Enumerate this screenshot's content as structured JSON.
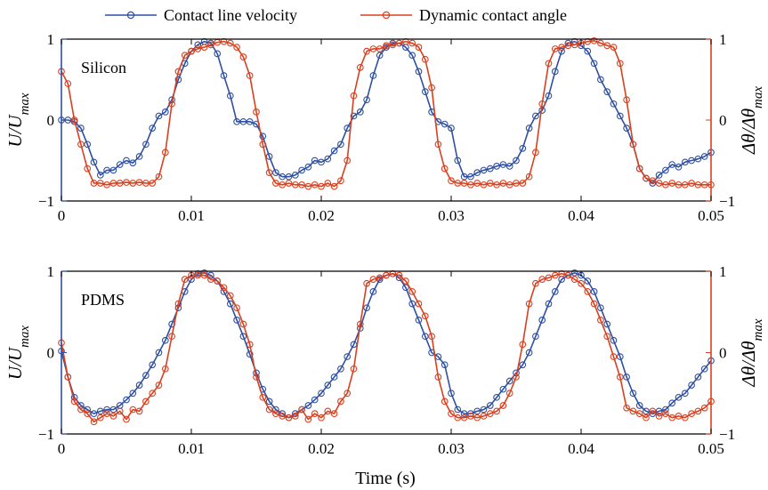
{
  "legend": {
    "velocity_label": "Contact line velocity",
    "angle_label": "Dynamic contact angle"
  },
  "colors": {
    "velocity": "#2f4fa0",
    "angle": "#d9401f"
  },
  "xlabel": "Time (s)",
  "left_ylabel": "U/U_max",
  "right_ylabel": "Δθ/Δθ_max",
  "chart_data": [
    {
      "type": "line",
      "panel": "Silicon",
      "xlabel": "",
      "xlim": [
        0,
        0.05
      ],
      "ylim": [
        -1,
        1
      ],
      "xticks": [
        0,
        0.01,
        0.02,
        0.03,
        0.04,
        0.05
      ],
      "xtick_labels": [
        "0",
        "0.01",
        "0.02",
        "0.03",
        "0.04",
        "0.05"
      ],
      "yticks": [
        -1,
        0,
        1
      ],
      "ytick_labels": [
        "−1",
        "0",
        "1"
      ],
      "series": [
        {
          "name": "Contact line velocity",
          "axis": "left",
          "x": [
            0,
            0.0005,
            0.001,
            0.0015,
            0.002,
            0.0025,
            0.003,
            0.0035,
            0.004,
            0.0045,
            0.005,
            0.0055,
            0.006,
            0.0065,
            0.007,
            0.0075,
            0.008,
            0.0085,
            0.009,
            0.0095,
            0.01,
            0.0105,
            0.011,
            0.0115,
            0.012,
            0.0125,
            0.013,
            0.0135,
            0.014,
            0.0145,
            0.015,
            0.0155,
            0.016,
            0.0165,
            0.017,
            0.0175,
            0.018,
            0.0185,
            0.019,
            0.0195,
            0.02,
            0.0205,
            0.021,
            0.0215,
            0.022,
            0.0225,
            0.023,
            0.0235,
            0.024,
            0.0245,
            0.025,
            0.0255,
            0.026,
            0.0265,
            0.027,
            0.0275,
            0.028,
            0.0285,
            0.029,
            0.0295,
            0.03,
            0.0305,
            0.031,
            0.0315,
            0.032,
            0.0325,
            0.033,
            0.0335,
            0.034,
            0.0345,
            0.035,
            0.0355,
            0.036,
            0.0365,
            0.037,
            0.0375,
            0.038,
            0.0385,
            0.039,
            0.0395,
            0.04,
            0.0405,
            0.041,
            0.0415,
            0.042,
            0.0425,
            0.043,
            0.0435,
            0.044,
            0.0445,
            0.045,
            0.0455,
            0.046,
            0.0465,
            0.047,
            0.0475,
            0.048,
            0.0485,
            0.049,
            0.0495,
            0.05
          ],
          "y": [
            0.0,
            0.0,
            -0.02,
            -0.1,
            -0.3,
            -0.52,
            -0.68,
            -0.62,
            -0.62,
            -0.55,
            -0.5,
            -0.53,
            -0.45,
            -0.3,
            -0.1,
            0.05,
            0.1,
            0.25,
            0.5,
            0.7,
            0.85,
            0.93,
            0.97,
            0.95,
            0.82,
            0.55,
            0.3,
            -0.02,
            -0.02,
            -0.02,
            -0.05,
            -0.2,
            -0.45,
            -0.65,
            -0.7,
            -0.7,
            -0.68,
            -0.62,
            -0.58,
            -0.5,
            -0.52,
            -0.48,
            -0.38,
            -0.3,
            -0.1,
            0.05,
            0.1,
            0.25,
            0.55,
            0.8,
            0.9,
            0.95,
            0.95,
            0.9,
            0.8,
            0.6,
            0.35,
            0.1,
            -0.02,
            -0.05,
            -0.1,
            -0.5,
            -0.7,
            -0.7,
            -0.65,
            -0.62,
            -0.6,
            -0.57,
            -0.55,
            -0.57,
            -0.5,
            -0.35,
            -0.1,
            0.05,
            0.12,
            0.3,
            0.6,
            0.85,
            0.95,
            0.97,
            0.92,
            0.85,
            0.7,
            0.5,
            0.35,
            0.2,
            0.05,
            -0.1,
            -0.3,
            -0.6,
            -0.72,
            -0.78,
            -0.68,
            -0.62,
            -0.55,
            -0.58,
            -0.52,
            -0.5,
            -0.48,
            -0.45,
            -0.4
          ]
        },
        {
          "name": "Dynamic contact angle",
          "axis": "right",
          "x": [
            0,
            0.0005,
            0.001,
            0.0015,
            0.002,
            0.0025,
            0.003,
            0.0035,
            0.004,
            0.0045,
            0.005,
            0.0055,
            0.006,
            0.0065,
            0.007,
            0.0075,
            0.008,
            0.0085,
            0.009,
            0.0095,
            0.01,
            0.0105,
            0.011,
            0.0115,
            0.012,
            0.0125,
            0.013,
            0.0135,
            0.014,
            0.0145,
            0.015,
            0.0155,
            0.016,
            0.0165,
            0.017,
            0.0175,
            0.018,
            0.0185,
            0.019,
            0.0195,
            0.02,
            0.0205,
            0.021,
            0.0215,
            0.022,
            0.0225,
            0.023,
            0.0235,
            0.024,
            0.0245,
            0.025,
            0.0255,
            0.026,
            0.0265,
            0.027,
            0.0275,
            0.028,
            0.0285,
            0.029,
            0.0295,
            0.03,
            0.0305,
            0.031,
            0.0315,
            0.032,
            0.0325,
            0.033,
            0.0335,
            0.034,
            0.0345,
            0.035,
            0.0355,
            0.036,
            0.0365,
            0.037,
            0.0375,
            0.038,
            0.0385,
            0.039,
            0.0395,
            0.04,
            0.0405,
            0.041,
            0.0415,
            0.042,
            0.0425,
            0.043,
            0.0435,
            0.044,
            0.0445,
            0.045,
            0.0455,
            0.046,
            0.0465,
            0.047,
            0.0475,
            0.048,
            0.0485,
            0.049,
            0.0495,
            0.05
          ],
          "y": [
            0.6,
            0.45,
            0.0,
            -0.3,
            -0.6,
            -0.78,
            -0.78,
            -0.8,
            -0.78,
            -0.78,
            -0.77,
            -0.78,
            -0.77,
            -0.78,
            -0.78,
            -0.7,
            -0.4,
            0.2,
            0.6,
            0.8,
            0.85,
            0.88,
            0.9,
            0.93,
            0.96,
            0.97,
            0.95,
            0.9,
            0.78,
            0.55,
            0.1,
            -0.3,
            -0.65,
            -0.78,
            -0.8,
            -0.78,
            -0.8,
            -0.8,
            -0.82,
            -0.8,
            -0.82,
            -0.78,
            -0.82,
            -0.75,
            -0.5,
            0.3,
            0.65,
            0.85,
            0.88,
            0.88,
            0.92,
            0.93,
            0.95,
            0.97,
            0.95,
            0.9,
            0.75,
            0.4,
            -0.3,
            -0.6,
            -0.75,
            -0.78,
            -0.78,
            -0.8,
            -0.78,
            -0.8,
            -0.78,
            -0.8,
            -0.78,
            -0.8,
            -0.78,
            -0.78,
            -0.7,
            -0.4,
            0.2,
            0.7,
            0.88,
            0.9,
            0.92,
            0.93,
            0.95,
            0.97,
            0.98,
            0.95,
            0.92,
            0.9,
            0.7,
            0.25,
            -0.3,
            -0.6,
            -0.72,
            -0.75,
            -0.78,
            -0.8,
            -0.78,
            -0.8,
            -0.8,
            -0.78,
            -0.8,
            -0.8,
            -0.8
          ]
        }
      ]
    },
    {
      "type": "line",
      "panel": "PDMS",
      "xlabel": "Time (s)",
      "xlim": [
        0,
        0.05
      ],
      "ylim": [
        -1,
        1
      ],
      "xticks": [
        0,
        0.01,
        0.02,
        0.03,
        0.04,
        0.05
      ],
      "xtick_labels": [
        "0",
        "0.01",
        "0.02",
        "0.03",
        "0.04",
        "0.05"
      ],
      "yticks": [
        -1,
        0,
        1
      ],
      "ytick_labels": [
        "−1",
        "0",
        "1"
      ],
      "series": [
        {
          "name": "Contact line velocity",
          "axis": "left",
          "x": [
            0,
            0.0005,
            0.001,
            0.0015,
            0.002,
            0.0025,
            0.003,
            0.0035,
            0.004,
            0.0045,
            0.005,
            0.0055,
            0.006,
            0.0065,
            0.007,
            0.0075,
            0.008,
            0.0085,
            0.009,
            0.0095,
            0.01,
            0.0105,
            0.011,
            0.0115,
            0.012,
            0.0125,
            0.013,
            0.0135,
            0.014,
            0.0145,
            0.015,
            0.0155,
            0.016,
            0.0165,
            0.017,
            0.0175,
            0.018,
            0.0185,
            0.019,
            0.0195,
            0.02,
            0.0205,
            0.021,
            0.0215,
            0.022,
            0.0225,
            0.023,
            0.0235,
            0.024,
            0.0245,
            0.025,
            0.0255,
            0.026,
            0.0265,
            0.027,
            0.0275,
            0.028,
            0.0285,
            0.029,
            0.0295,
            0.03,
            0.0305,
            0.031,
            0.0315,
            0.032,
            0.0325,
            0.033,
            0.0335,
            0.034,
            0.0345,
            0.035,
            0.0355,
            0.036,
            0.0365,
            0.037,
            0.0375,
            0.038,
            0.0385,
            0.039,
            0.0395,
            0.04,
            0.0405,
            0.041,
            0.0415,
            0.042,
            0.0425,
            0.043,
            0.0435,
            0.044,
            0.0445,
            0.045,
            0.0455,
            0.046,
            0.0465,
            0.047,
            0.0475,
            0.048,
            0.0485,
            0.049,
            0.0495,
            0.05
          ],
          "y": [
            0.02,
            -0.3,
            -0.55,
            -0.65,
            -0.7,
            -0.75,
            -0.72,
            -0.7,
            -0.7,
            -0.65,
            -0.58,
            -0.5,
            -0.4,
            -0.28,
            -0.15,
            0.0,
            0.15,
            0.35,
            0.55,
            0.75,
            0.9,
            0.97,
            0.98,
            0.95,
            0.88,
            0.75,
            0.6,
            0.4,
            0.2,
            -0.02,
            -0.25,
            -0.45,
            -0.6,
            -0.7,
            -0.75,
            -0.8,
            -0.75,
            -0.7,
            -0.65,
            -0.58,
            -0.5,
            -0.4,
            -0.3,
            -0.2,
            -0.05,
            0.1,
            0.3,
            0.55,
            0.75,
            0.9,
            0.95,
            0.97,
            0.92,
            0.8,
            0.6,
            0.4,
            0.2,
            0.0,
            -0.05,
            -0.15,
            -0.5,
            -0.7,
            -0.75,
            -0.75,
            -0.72,
            -0.7,
            -0.65,
            -0.55,
            -0.45,
            -0.35,
            -0.25,
            -0.15,
            0.0,
            0.2,
            0.4,
            0.6,
            0.75,
            0.9,
            0.95,
            0.98,
            0.95,
            0.88,
            0.75,
            0.55,
            0.35,
            0.15,
            -0.05,
            -0.3,
            -0.5,
            -0.65,
            -0.72,
            -0.75,
            -0.72,
            -0.7,
            -0.62,
            -0.55,
            -0.5,
            -0.4,
            -0.3,
            -0.2,
            -0.1
          ]
        },
        {
          "name": "Dynamic contact angle",
          "axis": "right",
          "x": [
            0,
            0.0005,
            0.001,
            0.0015,
            0.002,
            0.0025,
            0.003,
            0.0035,
            0.004,
            0.0045,
            0.005,
            0.0055,
            0.006,
            0.0065,
            0.007,
            0.0075,
            0.008,
            0.0085,
            0.009,
            0.0095,
            0.01,
            0.0105,
            0.011,
            0.0115,
            0.012,
            0.0125,
            0.013,
            0.0135,
            0.014,
            0.0145,
            0.015,
            0.0155,
            0.016,
            0.0165,
            0.017,
            0.0175,
            0.018,
            0.0185,
            0.019,
            0.0195,
            0.02,
            0.0205,
            0.021,
            0.0215,
            0.022,
            0.0225,
            0.023,
            0.0235,
            0.024,
            0.0245,
            0.025,
            0.0255,
            0.026,
            0.0265,
            0.027,
            0.0275,
            0.028,
            0.0285,
            0.029,
            0.0295,
            0.03,
            0.0305,
            0.031,
            0.0315,
            0.032,
            0.0325,
            0.033,
            0.0335,
            0.034,
            0.0345,
            0.035,
            0.0355,
            0.036,
            0.0365,
            0.037,
            0.0375,
            0.038,
            0.0385,
            0.039,
            0.0395,
            0.04,
            0.0405,
            0.041,
            0.0415,
            0.042,
            0.0425,
            0.043,
            0.0435,
            0.044,
            0.0445,
            0.045,
            0.0455,
            0.046,
            0.0465,
            0.047,
            0.0475,
            0.048,
            0.0485,
            0.049,
            0.0495,
            0.05
          ],
          "y": [
            0.12,
            -0.3,
            -0.6,
            -0.7,
            -0.75,
            -0.85,
            -0.8,
            -0.75,
            -0.78,
            -0.72,
            -0.82,
            -0.7,
            -0.72,
            -0.6,
            -0.5,
            -0.4,
            -0.2,
            0.2,
            0.6,
            0.9,
            0.95,
            0.95,
            0.95,
            0.9,
            0.88,
            0.8,
            0.7,
            0.55,
            0.35,
            0.1,
            -0.3,
            -0.55,
            -0.7,
            -0.75,
            -0.78,
            -0.8,
            -0.78,
            -0.7,
            -0.82,
            -0.75,
            -0.8,
            -0.72,
            -0.75,
            -0.6,
            -0.5,
            -0.2,
            0.35,
            0.85,
            0.9,
            0.92,
            0.95,
            0.97,
            0.95,
            0.88,
            0.75,
            0.6,
            0.45,
            0.2,
            -0.3,
            -0.6,
            -0.75,
            -0.8,
            -0.8,
            -0.78,
            -0.8,
            -0.78,
            -0.75,
            -0.72,
            -0.65,
            -0.5,
            -0.3,
            0.1,
            0.6,
            0.85,
            0.9,
            0.92,
            0.95,
            0.97,
            0.95,
            0.9,
            0.85,
            0.75,
            0.6,
            0.4,
            0.2,
            -0.05,
            -0.3,
            -0.68,
            -0.72,
            -0.75,
            -0.8,
            -0.72,
            -0.78,
            -0.75,
            -0.8,
            -0.78,
            -0.8,
            -0.75,
            -0.72,
            -0.68,
            -0.6
          ]
        }
      ]
    }
  ]
}
